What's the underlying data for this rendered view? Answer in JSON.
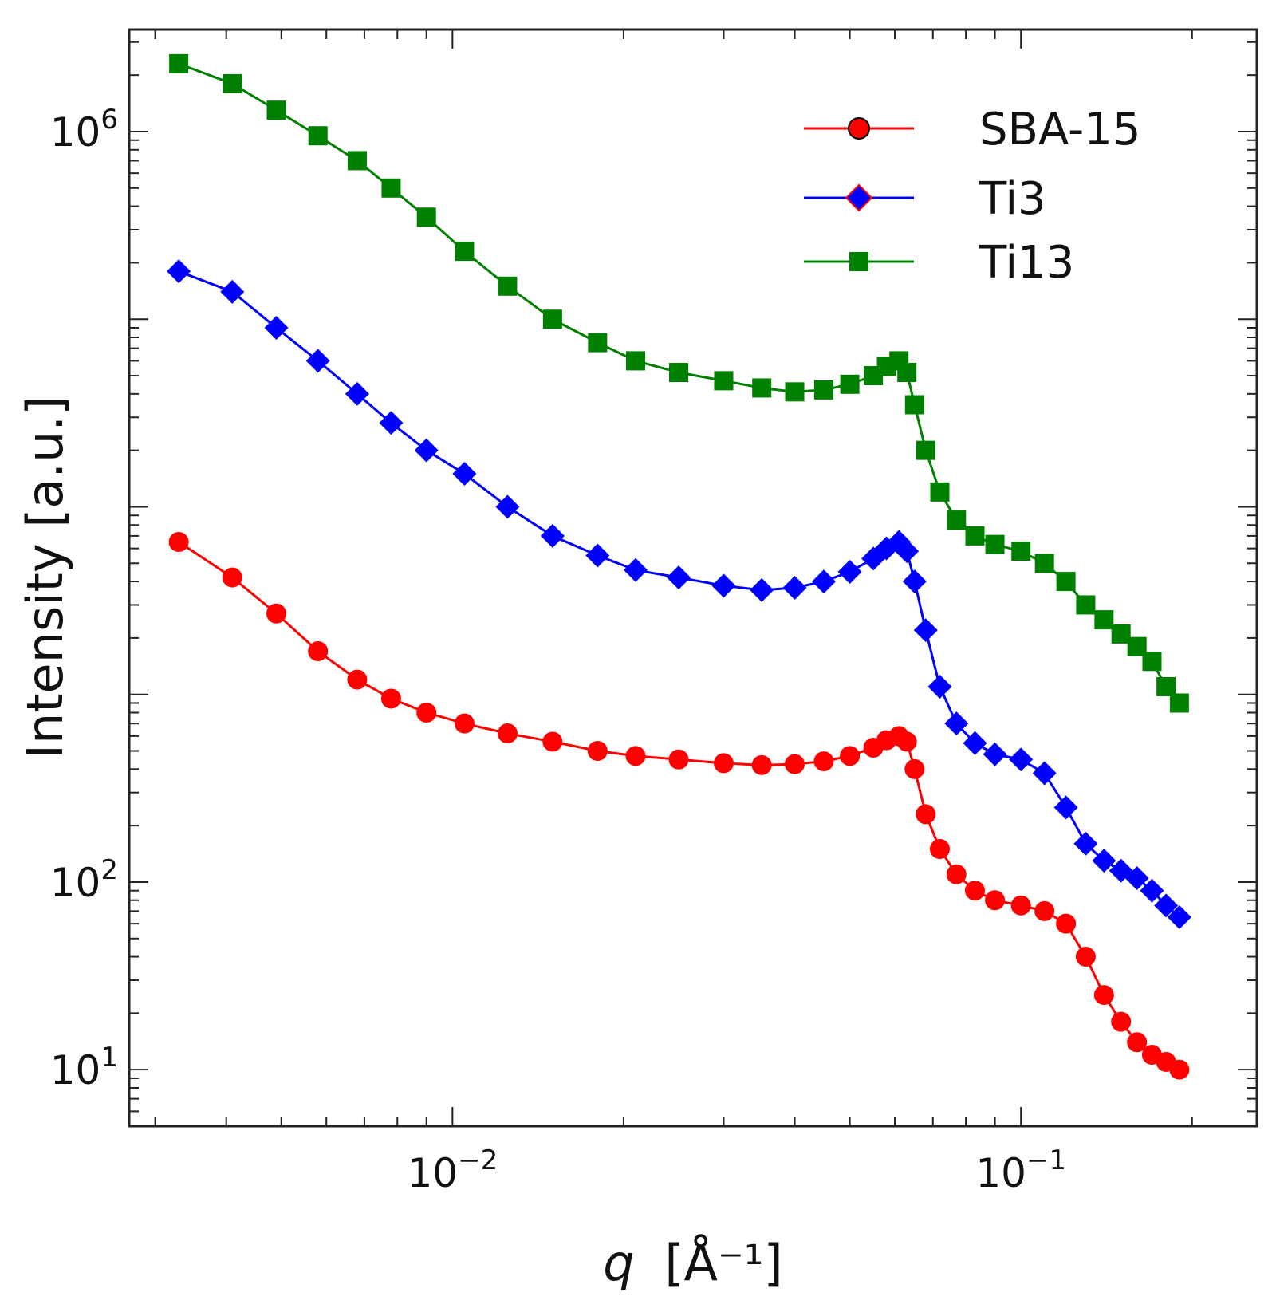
{
  "chart_data": {
    "type": "scatter",
    "title": "",
    "xlabel_var": "q",
    "xlabel_unit": "[Å⁻¹]",
    "ylabel": "Intensity [a.u.]",
    "x_scale": "log",
    "y_scale": "log",
    "xlim": [
      0.0027,
      0.26
    ],
    "ylim": [
      5,
      3500000
    ],
    "x_ticks": [
      {
        "value": 0.01,
        "base": "10",
        "exp": "−2"
      },
      {
        "value": 0.1,
        "base": "10",
        "exp": "−1"
      }
    ],
    "y_ticks": [
      {
        "value": 10,
        "base": "10",
        "exp": "1"
      },
      {
        "value": 100,
        "base": "10",
        "exp": "2"
      },
      {
        "value": 1000000,
        "base": "10",
        "exp": "6"
      }
    ],
    "legend": {
      "position": "top-right"
    },
    "series": [
      {
        "name": "SBA-15",
        "color": "#ff0000",
        "edge": "#000000",
        "marker": "circle",
        "points": [
          [
            0.0033,
            6500
          ],
          [
            0.0041,
            4200
          ],
          [
            0.0049,
            2700
          ],
          [
            0.0058,
            1700
          ],
          [
            0.0068,
            1200
          ],
          [
            0.0078,
            950
          ],
          [
            0.009,
            800
          ],
          [
            0.0105,
            700
          ],
          [
            0.0125,
            620
          ],
          [
            0.015,
            560
          ],
          [
            0.018,
            500
          ],
          [
            0.021,
            470
          ],
          [
            0.025,
            450
          ],
          [
            0.03,
            430
          ],
          [
            0.035,
            420
          ],
          [
            0.04,
            425
          ],
          [
            0.045,
            440
          ],
          [
            0.05,
            470
          ],
          [
            0.055,
            520
          ],
          [
            0.058,
            570
          ],
          [
            0.061,
            600
          ],
          [
            0.063,
            560
          ],
          [
            0.065,
            400
          ],
          [
            0.068,
            230
          ],
          [
            0.072,
            150
          ],
          [
            0.077,
            110
          ],
          [
            0.083,
            90
          ],
          [
            0.09,
            80
          ],
          [
            0.1,
            75
          ],
          [
            0.11,
            70
          ],
          [
            0.12,
            60
          ],
          [
            0.13,
            40
          ],
          [
            0.14,
            25
          ],
          [
            0.15,
            18
          ],
          [
            0.16,
            14
          ],
          [
            0.17,
            12
          ],
          [
            0.18,
            11
          ],
          [
            0.19,
            10
          ]
        ]
      },
      {
        "name": "Ti3",
        "color": "#0000ff",
        "edge": "#0000ff",
        "marker": "diamond",
        "points": [
          [
            0.0033,
            180000
          ],
          [
            0.0041,
            140000
          ],
          [
            0.0049,
            90000
          ],
          [
            0.0058,
            60000
          ],
          [
            0.0068,
            40000
          ],
          [
            0.0078,
            28000
          ],
          [
            0.009,
            20000
          ],
          [
            0.0105,
            15000
          ],
          [
            0.0125,
            10000
          ],
          [
            0.015,
            7000
          ],
          [
            0.018,
            5500
          ],
          [
            0.021,
            4600
          ],
          [
            0.025,
            4200
          ],
          [
            0.03,
            3800
          ],
          [
            0.035,
            3600
          ],
          [
            0.04,
            3700
          ],
          [
            0.045,
            4000
          ],
          [
            0.05,
            4500
          ],
          [
            0.055,
            5300
          ],
          [
            0.058,
            6000
          ],
          [
            0.061,
            6500
          ],
          [
            0.063,
            5800
          ],
          [
            0.065,
            4000
          ],
          [
            0.068,
            2200
          ],
          [
            0.072,
            1100
          ],
          [
            0.077,
            700
          ],
          [
            0.083,
            550
          ],
          [
            0.09,
            480
          ],
          [
            0.1,
            450
          ],
          [
            0.11,
            380
          ],
          [
            0.12,
            250
          ],
          [
            0.13,
            160
          ],
          [
            0.14,
            130
          ],
          [
            0.15,
            115
          ],
          [
            0.16,
            105
          ],
          [
            0.17,
            90
          ],
          [
            0.18,
            75
          ],
          [
            0.19,
            65
          ]
        ]
      },
      {
        "name": "Ti13",
        "color": "#008000",
        "edge": "#008000",
        "marker": "square",
        "points": [
          [
            0.0033,
            2300000
          ],
          [
            0.0041,
            1800000
          ],
          [
            0.0049,
            1300000
          ],
          [
            0.0058,
            950000
          ],
          [
            0.0068,
            700000
          ],
          [
            0.0078,
            500000
          ],
          [
            0.009,
            350000
          ],
          [
            0.0105,
            230000
          ],
          [
            0.0125,
            150000
          ],
          [
            0.015,
            100000
          ],
          [
            0.018,
            75000
          ],
          [
            0.021,
            60000
          ],
          [
            0.025,
            52000
          ],
          [
            0.03,
            47000
          ],
          [
            0.035,
            43000
          ],
          [
            0.04,
            41000
          ],
          [
            0.045,
            42000
          ],
          [
            0.05,
            45000
          ],
          [
            0.055,
            50000
          ],
          [
            0.058,
            56000
          ],
          [
            0.061,
            60000
          ],
          [
            0.063,
            52000
          ],
          [
            0.065,
            35000
          ],
          [
            0.068,
            20000
          ],
          [
            0.072,
            12000
          ],
          [
            0.077,
            8500
          ],
          [
            0.083,
            7000
          ],
          [
            0.09,
            6300
          ],
          [
            0.1,
            5800
          ],
          [
            0.11,
            5000
          ],
          [
            0.12,
            4000
          ],
          [
            0.13,
            3000
          ],
          [
            0.14,
            2500
          ],
          [
            0.15,
            2100
          ],
          [
            0.16,
            1800
          ],
          [
            0.17,
            1500
          ],
          [
            0.18,
            1100
          ],
          [
            0.19,
            900
          ]
        ]
      }
    ]
  }
}
